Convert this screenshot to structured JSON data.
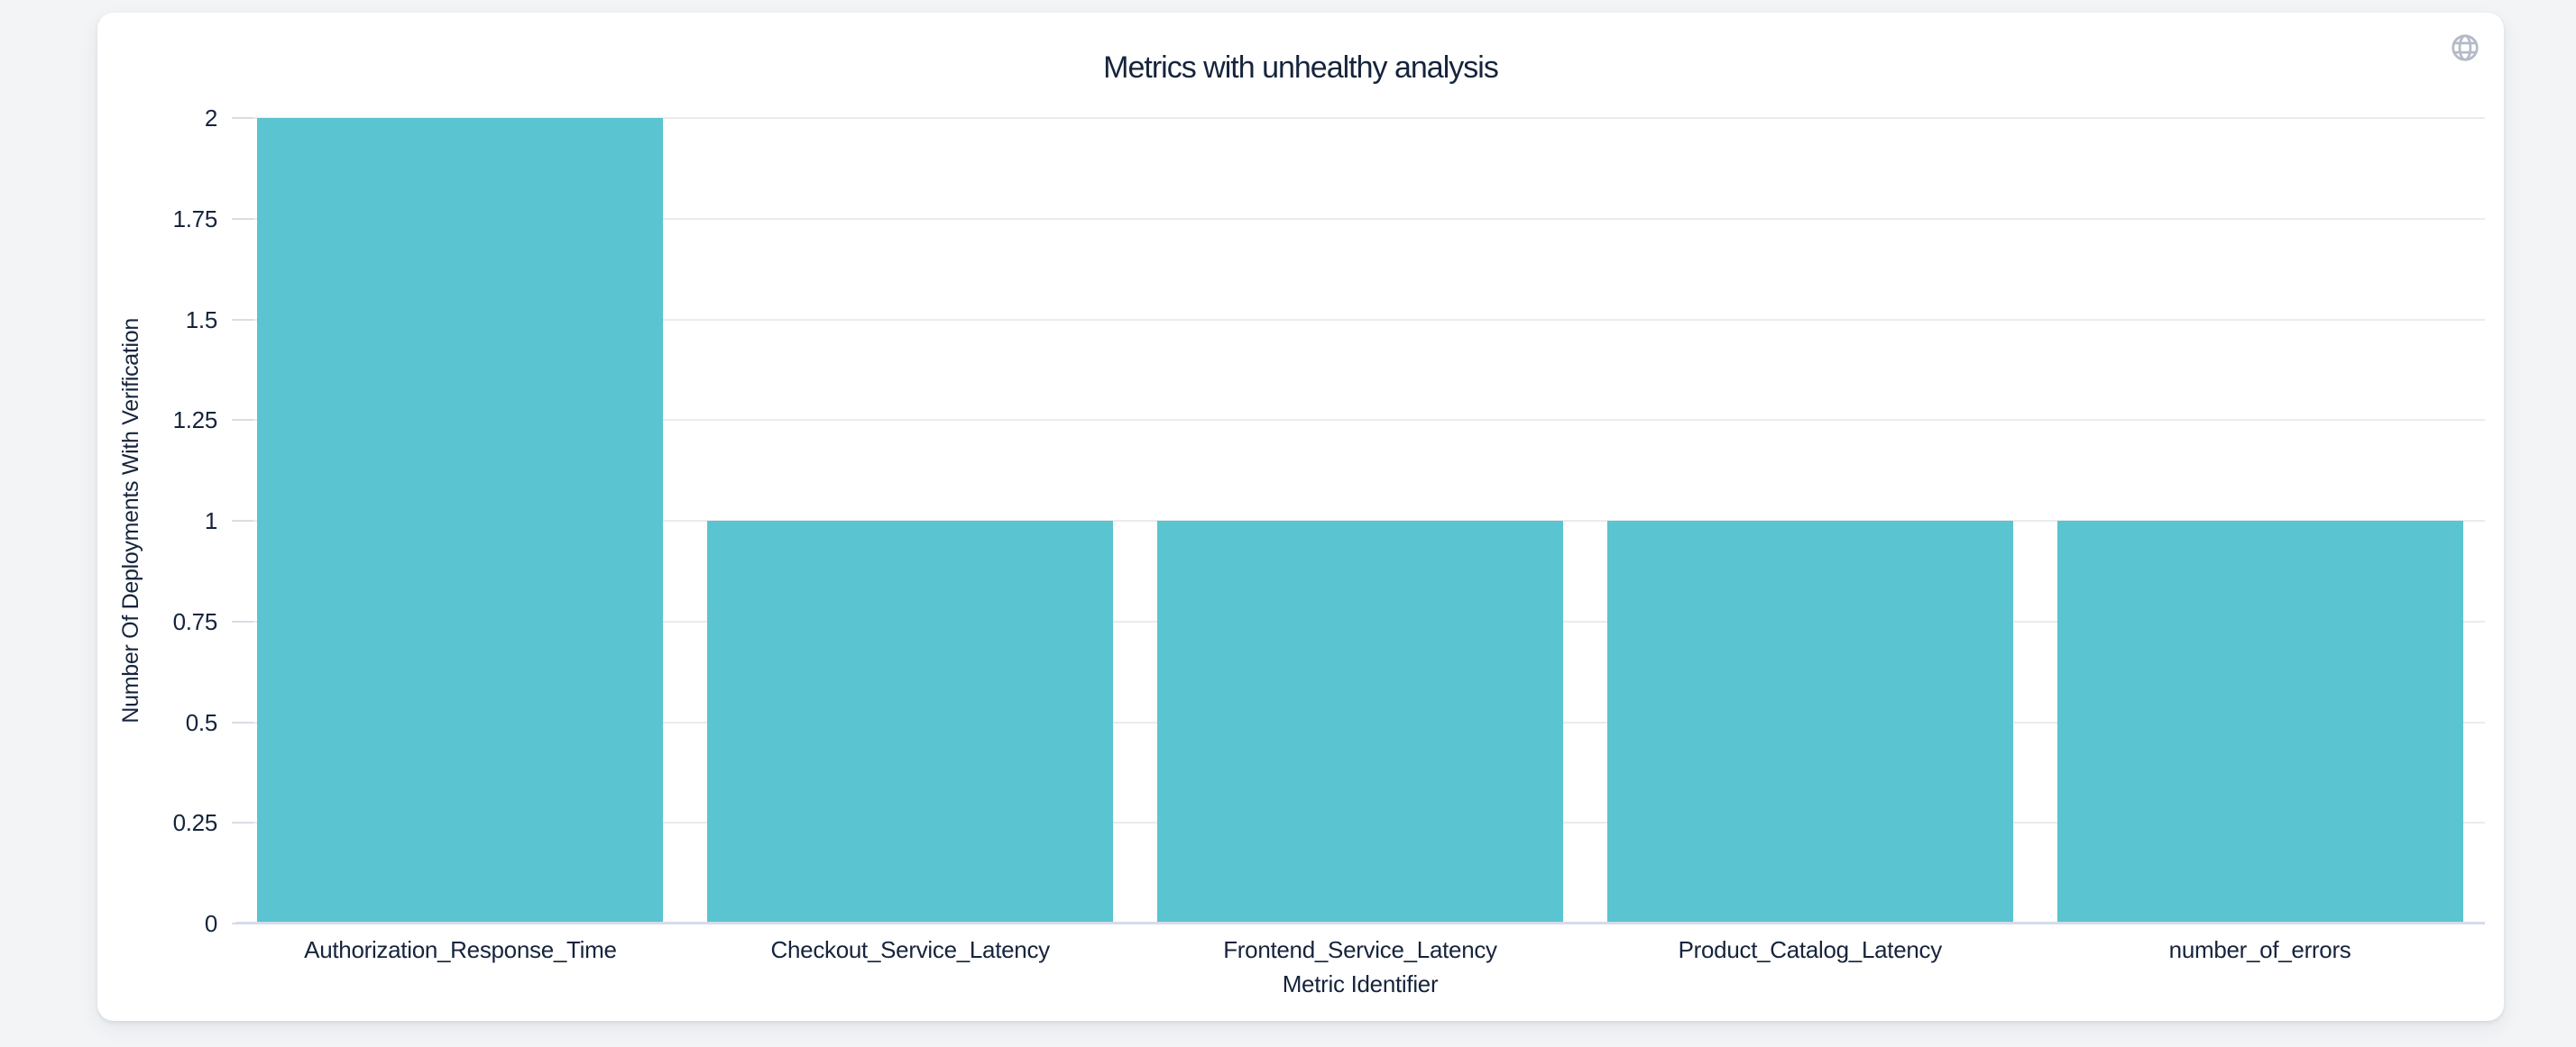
{
  "header": {
    "title": "Metrics with unhealthy analysis",
    "globe_icon": "globe-icon"
  },
  "chart_data": {
    "type": "bar",
    "title": "Metrics with unhealthy analysis",
    "categories": [
      "Authorization_Response_Time",
      "Checkout_Service_Latency",
      "Frontend_Service_Latency",
      "Product_Catalog_Latency",
      "number_of_errors"
    ],
    "values": [
      2,
      1,
      1,
      1,
      1
    ],
    "xlabel": "Metric Identifier",
    "ylabel": "Number Of Deployments With Verification",
    "ylim": [
      0,
      2
    ],
    "yticks": [
      0,
      0.25,
      0.5,
      0.75,
      1,
      1.25,
      1.5,
      1.75,
      2
    ],
    "grid": true,
    "legend": "none",
    "colors": {
      "bar": "#5ac4d0",
      "text": "#16243c",
      "grid": "#eaebed",
      "axis_line": "#d6dbe9",
      "tick": "#d9dde4",
      "globe": "#b4bac6",
      "card_bg": "#ffffff",
      "page_bg": "#f2f4f6"
    }
  }
}
